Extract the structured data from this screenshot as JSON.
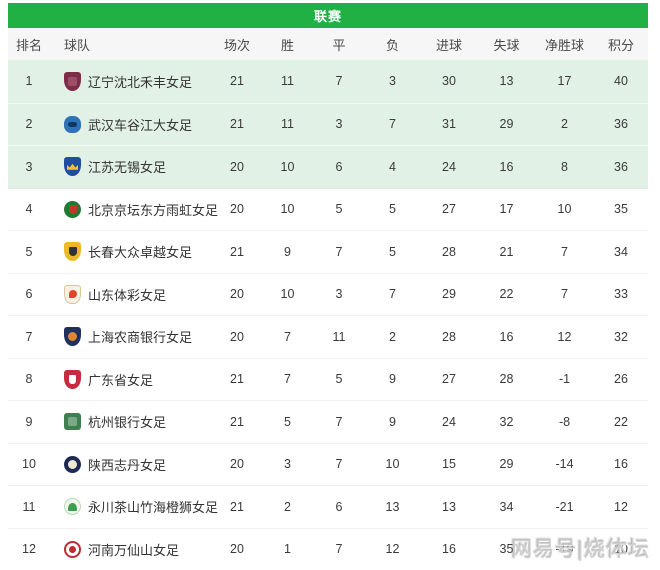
{
  "title": "联赛",
  "watermark": "网易号|烧体坛",
  "colors": {
    "header_green": "#20b044",
    "top3_row_bg": "#e2f1e6",
    "column_header_bg": "#f5f6f5"
  },
  "table": {
    "columns": [
      {
        "key": "rank",
        "label": "排名"
      },
      {
        "key": "team",
        "label": "球队"
      },
      {
        "key": "played",
        "label": "场次"
      },
      {
        "key": "win",
        "label": "胜"
      },
      {
        "key": "draw",
        "label": "平"
      },
      {
        "key": "loss",
        "label": "负"
      },
      {
        "key": "gf",
        "label": "进球"
      },
      {
        "key": "ga",
        "label": "失球"
      },
      {
        "key": "gd",
        "label": "净胜球"
      },
      {
        "key": "pts",
        "label": "积分"
      }
    ],
    "rows": [
      {
        "rank": 1,
        "team": "辽宁沈北禾丰女足",
        "logo": "liaoning-shenbei-crest",
        "played": 21,
        "win": 11,
        "draw": 7,
        "loss": 3,
        "gf": 30,
        "ga": 13,
        "gd": 17,
        "pts": 40,
        "highlight": true
      },
      {
        "rank": 2,
        "team": "武汉车谷江大女足",
        "logo": "wuhan-jiangda-crest",
        "played": 21,
        "win": 11,
        "draw": 3,
        "loss": 7,
        "gf": 31,
        "ga": 29,
        "gd": 2,
        "pts": 36,
        "highlight": true
      },
      {
        "rank": 3,
        "team": "江苏无锡女足",
        "logo": "jiangsu-wuxi-crest",
        "played": 20,
        "win": 10,
        "draw": 6,
        "loss": 4,
        "gf": 24,
        "ga": 16,
        "gd": 8,
        "pts": 36,
        "highlight": true
      },
      {
        "rank": 4,
        "team": "北京京坛东方雨虹女足",
        "logo": "beijing-yuhong-crest",
        "played": 20,
        "win": 10,
        "draw": 5,
        "loss": 5,
        "gf": 27,
        "ga": 17,
        "gd": 10,
        "pts": 35,
        "highlight": false
      },
      {
        "rank": 5,
        "team": "长春大众卓越女足",
        "logo": "changchun-zhuoyue-crest",
        "played": 21,
        "win": 9,
        "draw": 7,
        "loss": 5,
        "gf": 28,
        "ga": 21,
        "gd": 7,
        "pts": 34,
        "highlight": false
      },
      {
        "rank": 6,
        "team": "山东体彩女足",
        "logo": "shandong-ticai-crest",
        "played": 20,
        "win": 10,
        "draw": 3,
        "loss": 7,
        "gf": 29,
        "ga": 22,
        "gd": 7,
        "pts": 33,
        "highlight": false
      },
      {
        "rank": 7,
        "team": "上海农商银行女足",
        "logo": "shanghai-nongshang-crest",
        "played": 20,
        "win": 7,
        "draw": 11,
        "loss": 2,
        "gf": 28,
        "ga": 16,
        "gd": 12,
        "pts": 32,
        "highlight": false
      },
      {
        "rank": 8,
        "team": "广东省女足",
        "logo": "guangdong-crest",
        "played": 21,
        "win": 7,
        "draw": 5,
        "loss": 9,
        "gf": 27,
        "ga": 28,
        "gd": -1,
        "pts": 26,
        "highlight": false
      },
      {
        "rank": 9,
        "team": "杭州银行女足",
        "logo": "hangzhou-bank-crest",
        "played": 21,
        "win": 5,
        "draw": 7,
        "loss": 9,
        "gf": 24,
        "ga": 32,
        "gd": -8,
        "pts": 22,
        "highlight": false
      },
      {
        "rank": 10,
        "team": "陕西志丹女足",
        "logo": "shaanxi-zhidan-crest",
        "played": 20,
        "win": 3,
        "draw": 7,
        "loss": 10,
        "gf": 15,
        "ga": 29,
        "gd": -14,
        "pts": 16,
        "highlight": false
      },
      {
        "rank": 11,
        "team": "永川茶山竹海橙狮女足",
        "logo": "yongchuan-chengshi-crest",
        "played": 21,
        "win": 2,
        "draw": 6,
        "loss": 13,
        "gf": 13,
        "ga": 34,
        "gd": -21,
        "pts": 12,
        "highlight": false
      },
      {
        "rank": 12,
        "team": "河南万仙山女足",
        "logo": "henan-wanxianshan-crest",
        "played": 20,
        "win": 1,
        "draw": 7,
        "loss": 12,
        "gf": 16,
        "ga": 35,
        "gd": -19,
        "pts": 10,
        "highlight": false
      }
    ]
  }
}
